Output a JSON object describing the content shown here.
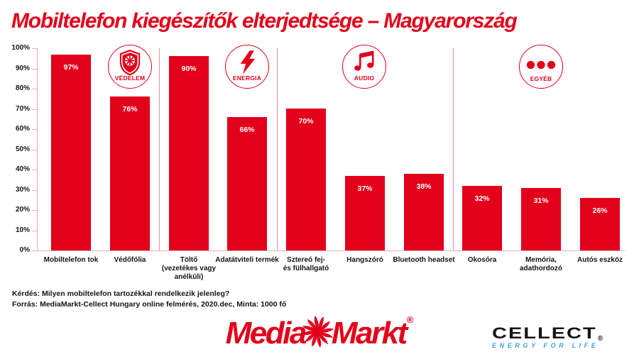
{
  "page": {
    "title": "Mobiltelefon kiegészítők elterjedtsége – Magyarország"
  },
  "chart_data": {
    "type": "bar",
    "title": "Mobiltelefon kiegészítők elterjedtsége – Magyarország",
    "xlabel": "",
    "ylabel": "",
    "ylim": [
      0,
      100
    ],
    "grid": false,
    "legend": "none",
    "y_ticks": [
      "100%",
      "90%",
      "80%",
      "70%",
      "60%",
      "50%",
      "40%",
      "30%",
      "20%",
      "10%",
      "0%"
    ],
    "categories": [
      "Mobiltelefon tok",
      "Védőfólia",
      "Töltő\n(vezetékes vagy\nanélküli)",
      "Adatátviteli termék",
      "Sztereó fej-\nés fülhallgató",
      "Hangszóró",
      "Bluetooth headset",
      "Okosóra",
      "Memória,\nadathordozó",
      "Autós eszköz"
    ],
    "values": [
      97,
      76,
      90,
      66,
      70,
      37,
      38,
      32,
      31,
      26
    ],
    "bar_labels": [
      "97%",
      "76%",
      "90%",
      "66%",
      "70%",
      "37%",
      "38%",
      "32%",
      "31%",
      "26%"
    ],
    "bar_display_heights": [
      97,
      76,
      96,
      66,
      70,
      37,
      38,
      32,
      31,
      26
    ],
    "bar_color": "#e2001a",
    "groups": [
      {
        "label": "VÉDELEM",
        "icon": "shield-icon",
        "categories": [
          "Mobiltelefon tok",
          "Védőfólia"
        ]
      },
      {
        "label": "ENERGIA",
        "icon": "lightning-icon",
        "categories": [
          "Töltő (vezetékes vagy anélküli)",
          "Adatátviteli termék"
        ]
      },
      {
        "label": "AUDIO",
        "icon": "music-note-icon",
        "categories": [
          "Sztereó fej- és fülhallgató",
          "Hangszóró",
          "Bluetooth headset"
        ]
      },
      {
        "label": "EGYÉB",
        "icon": "dots-icon",
        "categories": [
          "Okosóra",
          "Memória, adathordozó",
          "Autós eszköz"
        ]
      }
    ]
  },
  "footer": {
    "question": "Kérdés: Milyen mobiltelefon tartozékkal rendelkezik jelenleg?",
    "source": "Forrás: MediaMarkt-Cellect Hungary online felmérés, 2020.dec, Minta: 1000 fő"
  },
  "logos": {
    "mediamarkt": {
      "part1": "Media",
      "part2": "Markt",
      "registered": "®"
    },
    "cellect": {
      "name": "CELLECT",
      "registered": "®",
      "tagline": "ENERGY FOR LIFE"
    }
  },
  "colors": {
    "brand_red": "#e2001a",
    "axis_pink": "#f2acb2",
    "divider_red": "#ec8f98",
    "text_black": "#141414",
    "bar_label_white": "#ffffff",
    "cellect_blue": "#39a3e4"
  }
}
